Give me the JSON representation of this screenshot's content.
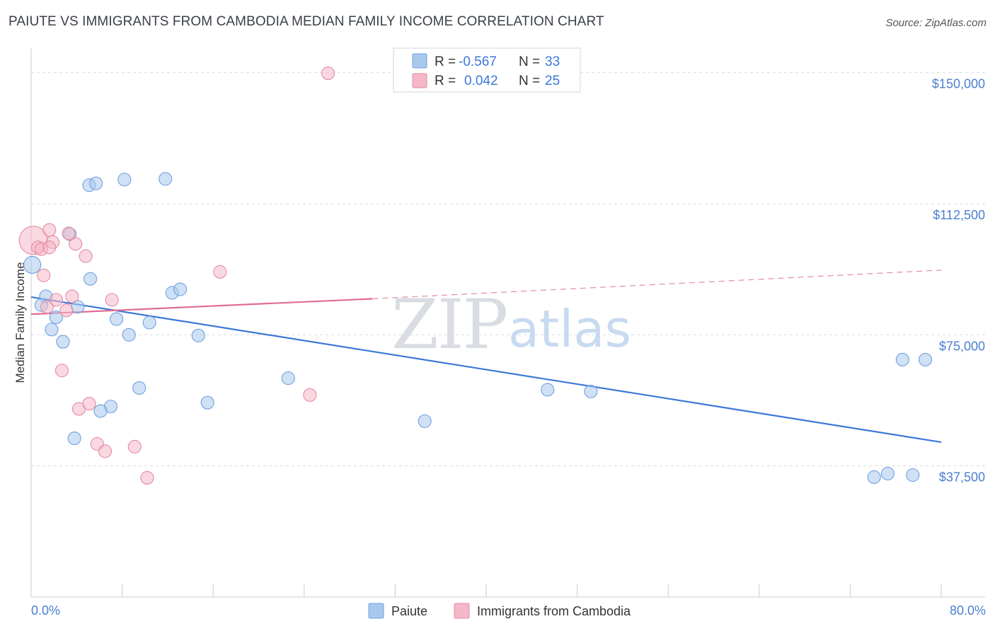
{
  "header": {
    "title": "PAIUTE VS IMMIGRANTS FROM CAMBODIA MEDIAN FAMILY INCOME CORRELATION CHART",
    "source": "Source: ZipAtlas.com"
  },
  "watermark": {
    "zip": "ZIP",
    "atlas": "atlas"
  },
  "legend": {
    "rows": [
      {
        "r_label": "R =",
        "r_value": "-0.567",
        "n_label": "N =",
        "n_value": "33",
        "color": "#a9c8ee"
      },
      {
        "r_label": "R =",
        "r_value": "0.042",
        "n_label": "N =",
        "n_value": "25",
        "color": "#f5b8c9"
      }
    ]
  },
  "bottom_legend": [
    {
      "label": "Paiute",
      "color": "#a9c8ee"
    },
    {
      "label": "Immigrants from Cambodia",
      "color": "#f5b8c9"
    }
  ],
  "chart_data": {
    "type": "scatter",
    "title": "PAIUTE VS IMMIGRANTS FROM CAMBODIA MEDIAN FAMILY INCOME CORRELATION CHART",
    "xlabel": "",
    "ylabel": "Median Family Income",
    "xlim": [
      0,
      80
    ],
    "ylim": [
      0,
      157000
    ],
    "x_tick_labels": [
      "0.0%",
      "80.0%"
    ],
    "y_ticks": [
      37500,
      75000,
      112500,
      150000
    ],
    "y_tick_labels": [
      "$37,500",
      "$75,000",
      "$112,500",
      "$150,000"
    ],
    "grid": true,
    "legend_position": "top-center",
    "series": [
      {
        "name": "Paiute",
        "color": "#6fa0e0",
        "fill": "#a9c8ee",
        "points": [
          [
            0.1,
            95000
          ],
          [
            1.3,
            86000
          ],
          [
            0.9,
            83500
          ],
          [
            2.2,
            80000
          ],
          [
            1.8,
            76500
          ],
          [
            2.8,
            73000
          ],
          [
            3.4,
            103800
          ],
          [
            5.1,
            117800
          ],
          [
            5.7,
            118300
          ],
          [
            8.2,
            119400
          ],
          [
            11.8,
            119600
          ],
          [
            5.2,
            91000
          ],
          [
            4.1,
            83000
          ],
          [
            7.5,
            79500
          ],
          [
            8.6,
            75000
          ],
          [
            10.4,
            78500
          ],
          [
            9.5,
            59800
          ],
          [
            7.0,
            54500
          ],
          [
            6.1,
            53200
          ],
          [
            3.8,
            45400
          ],
          [
            12.4,
            87000
          ],
          [
            13.1,
            88000
          ],
          [
            14.7,
            74800
          ],
          [
            15.5,
            55600
          ],
          [
            22.6,
            62600
          ],
          [
            34.6,
            50300
          ],
          [
            45.4,
            59300
          ],
          [
            49.2,
            58800
          ],
          [
            76.6,
            67900
          ],
          [
            78.6,
            67900
          ],
          [
            75.3,
            35300
          ],
          [
            77.5,
            34900
          ],
          [
            74.1,
            34300
          ]
        ],
        "trend": {
          "x": [
            0,
            80
          ],
          "y": [
            85800,
            44300
          ]
        }
      },
      {
        "name": "Immigrants from Cambodia",
        "color": "#e48aa4",
        "fill": "#f5b8c9",
        "points": [
          [
            0.2,
            102000
          ],
          [
            0.6,
            100000
          ],
          [
            0.9,
            99500
          ],
          [
            1.6,
            105000
          ],
          [
            1.9,
            101500
          ],
          [
            3.3,
            104000
          ],
          [
            3.9,
            101000
          ],
          [
            4.8,
            97500
          ],
          [
            1.1,
            92000
          ],
          [
            1.4,
            83000
          ],
          [
            2.2,
            85000
          ],
          [
            3.1,
            82000
          ],
          [
            3.6,
            86000
          ],
          [
            7.1,
            85000
          ],
          [
            16.6,
            93000
          ],
          [
            2.7,
            64800
          ],
          [
            4.2,
            53800
          ],
          [
            5.1,
            55300
          ],
          [
            5.8,
            43800
          ],
          [
            6.5,
            41700
          ],
          [
            9.1,
            43000
          ],
          [
            10.2,
            34100
          ],
          [
            24.5,
            57800
          ],
          [
            26.1,
            149800
          ],
          [
            1.6,
            100000
          ]
        ],
        "trend": {
          "x": [
            0,
            30
          ],
          "y": [
            80900,
            85300
          ]
        },
        "trend_extension": {
          "x": [
            30,
            80
          ],
          "y": [
            85300,
            93500
          ]
        }
      }
    ]
  }
}
